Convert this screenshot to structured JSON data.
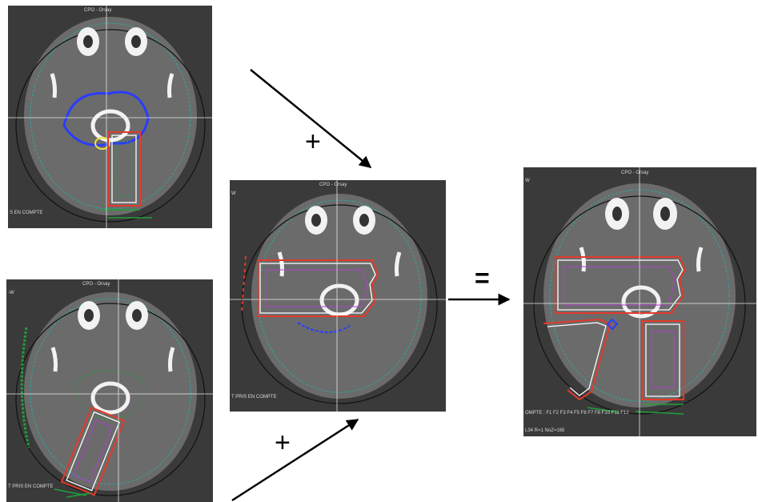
{
  "operators": {
    "plus_top": "+",
    "plus_bottom": "+",
    "equals": "="
  },
  "panels": {
    "top_left": {
      "header": "CPO - Orsay",
      "footer": "S EN COMPTE"
    },
    "bottom_left": {
      "header": "CPO - Orsay",
      "corner": "-W",
      "footer": "T PRIS EN COMPTE"
    },
    "center": {
      "header": "CPO - Orsay",
      "corner": "W",
      "footer": "T PRIS EN COMPTE"
    },
    "result": {
      "header": "CPO - Orsay",
      "corner": "W",
      "footer_line1": "OMPTE :  F1 F2 F3 F4 F5 F6 F7 F8 F10 F11 F12",
      "footer_line2": "L34  R=1  NoZ=165"
    }
  },
  "colors": {
    "panel_bg": "#3a3a3a",
    "head": "#6b6b6b",
    "bone": "#f2f2f2",
    "target_blue": "#2a3cff",
    "target_yellow": "#f0e040",
    "iso_red": "#e23a2a",
    "iso_white": "#ffffff",
    "iso_green": "#1fa03a",
    "iso_magenta": "#b040c8",
    "contour_teal": "#2aa8a0"
  }
}
